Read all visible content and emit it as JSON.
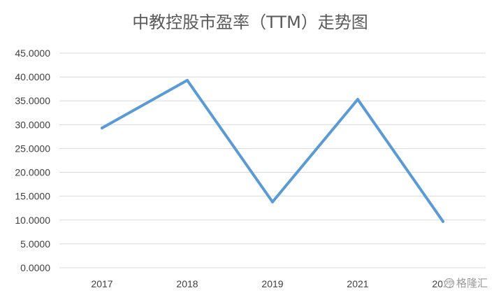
{
  "chart_data": {
    "type": "line",
    "title": "中教控股市盈率（TTM）走势图",
    "categories": [
      "2017",
      "2018",
      "2019",
      "2021",
      "2022"
    ],
    "series": [
      {
        "values": [
          29.3,
          39.3,
          13.8,
          35.3,
          9.7
        ]
      }
    ],
    "ylim": [
      0,
      45
    ],
    "y_ticks": [
      "0.0000",
      "5.0000",
      "10.0000",
      "15.0000",
      "20.0000",
      "25.0000",
      "30.0000",
      "35.0000",
      "40.0000",
      "45.0000"
    ],
    "grid": true,
    "line_color": "#5b9bd5"
  },
  "watermark": {
    "icon": "circle-logo-icon",
    "text": "格隆汇"
  }
}
